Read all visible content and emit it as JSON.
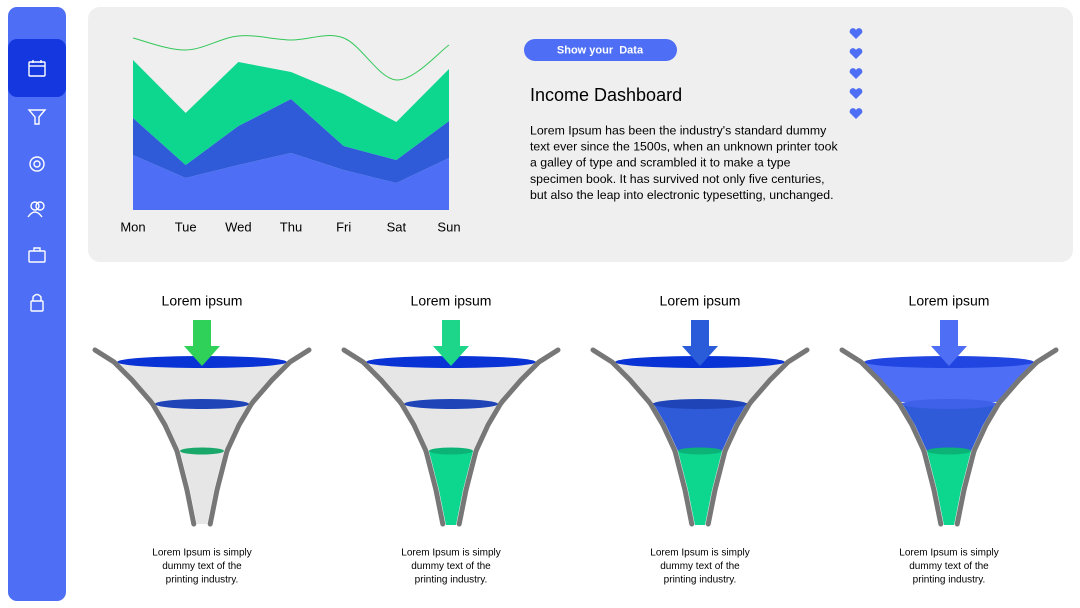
{
  "chart_data": {
    "type": "area",
    "stacked": true,
    "categories": [
      "Mon",
      "Tue",
      "Wed",
      "Thu",
      "Fri",
      "Sat",
      "Sun"
    ],
    "ylim": [
      0,
      180
    ],
    "series": [
      {
        "color": "#4d6ef5",
        "values": [
          55,
          32,
          45,
          57,
          40,
          27,
          52
        ]
      },
      {
        "color": "#2f5bd8",
        "values": [
          37,
          13,
          39,
          54,
          24,
          23,
          37
        ]
      },
      {
        "color": "#0dd68f",
        "values": [
          58,
          52,
          64,
          27,
          52,
          38,
          52
        ]
      },
      {
        "type": "line",
        "color": "#34c759",
        "values": [
          172,
          160,
          174,
          170,
          172,
          130,
          165
        ]
      }
    ]
  },
  "button": "Show your  Data",
  "title": "Income Dashboard",
  "body": [
    "Lorem Ipsum has been the industry's standard dummy",
    "text ever since the 1500s, when an unknown printer took",
    "a galley of type and scrambled it to make a type",
    "specimen book. It has survived not only five centuries,",
    "but also the leap into electronic typesetting, unchanged."
  ],
  "funnels": [
    {
      "label": "Lorem ipsum",
      "caption": [
        "Lorem Ipsum is simply",
        "dummy text of the",
        "printing industry."
      ]
    },
    {
      "label": "Lorem ipsum",
      "caption": [
        "Lorem Ipsum is simply",
        "dummy text of the",
        "printing industry."
      ]
    },
    {
      "label": "Lorem ipsum",
      "caption": [
        "Lorem Ipsum is simply",
        "dummy text of the",
        "printing industry."
      ]
    },
    {
      "label": "Lorem ipsum",
      "caption": [
        "Lorem Ipsum is simply",
        "dummy text of the",
        "printing industry."
      ]
    }
  ]
}
